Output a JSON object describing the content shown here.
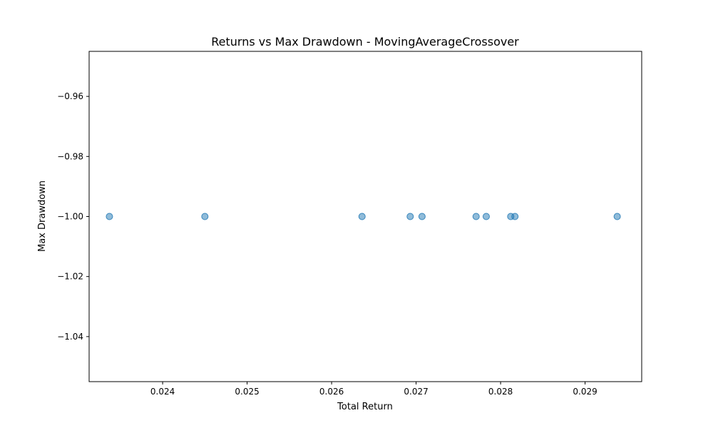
{
  "chart_data": {
    "type": "scatter",
    "title": "Returns vs Max Drawdown - MovingAverageCrossover",
    "xlabel": "Total Return",
    "ylabel": "Max Drawdown",
    "xlim": [
      0.02313,
      0.02967
    ],
    "ylim": [
      -1.055,
      -0.945
    ],
    "x_ticks": [
      0.024,
      0.025,
      0.026,
      0.027,
      0.028,
      0.029
    ],
    "x_tick_labels": [
      "0.024",
      "0.025",
      "0.026",
      "0.027",
      "0.028",
      "0.029"
    ],
    "y_ticks": [
      -0.96,
      -0.98,
      -1.0,
      -1.02,
      -1.04
    ],
    "y_tick_labels": [
      "−0.96",
      "−0.98",
      "−1.00",
      "−1.02",
      "−1.04"
    ],
    "grid": false,
    "point_color": "#1f77b4",
    "point_opacity": 0.5,
    "points": [
      {
        "x": 0.02337,
        "y": -1.0
      },
      {
        "x": 0.0245,
        "y": -1.0
      },
      {
        "x": 0.02636,
        "y": -1.0
      },
      {
        "x": 0.02693,
        "y": -1.0
      },
      {
        "x": 0.02707,
        "y": -1.0
      },
      {
        "x": 0.02771,
        "y": -1.0
      },
      {
        "x": 0.02783,
        "y": -1.0
      },
      {
        "x": 0.02812,
        "y": -1.0
      },
      {
        "x": 0.02817,
        "y": -1.0
      },
      {
        "x": 0.02938,
        "y": -1.0
      }
    ]
  }
}
